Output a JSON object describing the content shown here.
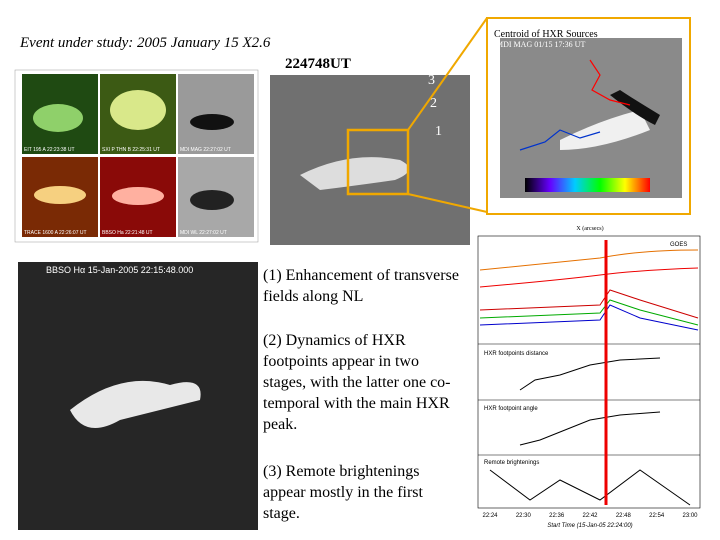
{
  "title": "Event under study: 2005 January 15 X2.6",
  "panels": {
    "grid_labels": [
      "EIT 195 A 22:23:38 UT",
      "SXI P THN B 22:25:31 UT",
      "MDI MAG 22:27:02 UT",
      "TRACE 1600 A 22:26:07 UT",
      "BBSO Ha 22:21:48 UT",
      "MDI WL 22:27:02 UT"
    ],
    "timestamp": "224748UT",
    "zoom_numbers": [
      "3",
      "2",
      "1"
    ],
    "centroid_title": "Centroid of HXR Sources",
    "centroid_subtitle": "MDI MAG 01/15 17:36 UT",
    "centroid_x_label": "X (arcsecs)",
    "halpha_label": "BBSO Hα 15-Jan-2005 22:15:48.000"
  },
  "notes": [
    "(1) Enhancement of transverse fields along NL",
    "(2) Dynamics of HXR footpoints  appear in two stages, with the latter one co-temporal with the main HXR peak.",
    "(3) Remote brightenings appear mostly in the first stage."
  ],
  "lightcurve": {
    "panel_labels": [
      "GOES",
      "HXR footpoints distance",
      "HXR footpoint angle",
      "Remote brightenings"
    ],
    "x_tick_labels": [
      "22:24",
      "22:30",
      "22:36",
      "22:42",
      "22:48",
      "22:54",
      "23:00"
    ],
    "x_label": "Start Time (15-Jan-05 22:24:00)"
  }
}
